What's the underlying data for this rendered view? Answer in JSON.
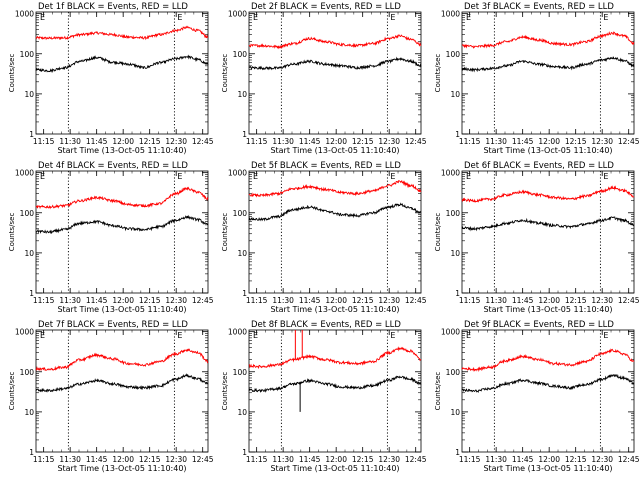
{
  "chart_data": [
    {
      "type": "line",
      "title": "Det 1f BLACK = Events, RED = LLD",
      "xlabel": "Start Time (13-Oct-05 11:10:40)",
      "ylabel": "Counts/sec",
      "flag": "E",
      "series": [
        {
          "color": "#ff0000",
          "values": [
            250,
            245,
            250,
            300,
            330,
            300,
            260,
            250,
            300,
            380,
            450,
            380,
            260
          ]
        },
        {
          "color": "#000000",
          "values": [
            40,
            38,
            45,
            65,
            80,
            62,
            55,
            45,
            60,
            75,
            85,
            72,
            55
          ]
        }
      ]
    },
    {
      "type": "line",
      "title": "Det 2f BLACK = Events, RED = LLD",
      "xlabel": "Start Time (13-Oct-05 11:10:40)",
      "ylabel": "Counts/sec",
      "flag": "E",
      "series": [
        {
          "color": "#ff0000",
          "values": [
            160,
            160,
            150,
            180,
            240,
            200,
            170,
            160,
            180,
            240,
            280,
            230,
            170
          ]
        },
        {
          "color": "#000000",
          "values": [
            45,
            44,
            44,
            55,
            65,
            55,
            50,
            45,
            50,
            65,
            75,
            65,
            50
          ]
        }
      ]
    },
    {
      "type": "line",
      "title": "Det 3f BLACK = Events, RED = LLD",
      "xlabel": "Start Time (13-Oct-05 11:10:40)",
      "ylabel": "Counts/sec",
      "flag": "E",
      "series": [
        {
          "color": "#ff0000",
          "values": [
            160,
            150,
            160,
            200,
            260,
            220,
            180,
            170,
            200,
            280,
            330,
            280,
            180
          ]
        },
        {
          "color": "#000000",
          "values": [
            42,
            40,
            43,
            50,
            65,
            55,
            48,
            45,
            55,
            70,
            80,
            68,
            50
          ]
        }
      ]
    },
    {
      "type": "line",
      "title": "Det 4f BLACK = Events, RED = LLD",
      "xlabel": "Start Time (13-Oct-05 11:10:40)",
      "ylabel": "Counts/sec",
      "flag": "E",
      "series": [
        {
          "color": "#ff0000",
          "values": [
            140,
            140,
            150,
            200,
            240,
            200,
            160,
            150,
            170,
            300,
            400,
            330,
            220
          ]
        },
        {
          "color": "#000000",
          "values": [
            35,
            33,
            38,
            55,
            60,
            48,
            40,
            38,
            45,
            65,
            78,
            68,
            50
          ]
        }
      ]
    },
    {
      "type": "line",
      "title": "Det 5f BLACK = Events, RED = LLD",
      "xlabel": "Start Time (13-Oct-05 11:10:40)",
      "ylabel": "Counts/sec",
      "flag": "E",
      "series": [
        {
          "color": "#ff0000",
          "values": [
            280,
            270,
            300,
            400,
            450,
            380,
            320,
            300,
            350,
            480,
            600,
            480,
            350
          ]
        },
        {
          "color": "#000000",
          "values": [
            70,
            68,
            80,
            120,
            140,
            110,
            90,
            85,
            100,
            140,
            160,
            130,
            100
          ]
        }
      ]
    },
    {
      "type": "line",
      "title": "Det 6f BLACK = Events, RED = LLD",
      "xlabel": "Start Time (13-Oct-05 11:10:40)",
      "ylabel": "Counts/sec",
      "flag": "E",
      "series": [
        {
          "color": "#ff0000",
          "values": [
            210,
            200,
            220,
            280,
            330,
            280,
            240,
            220,
            260,
            350,
            420,
            360,
            260
          ]
        },
        {
          "color": "#000000",
          "values": [
            42,
            40,
            45,
            55,
            65,
            55,
            48,
            45,
            52,
            65,
            75,
            65,
            50
          ]
        }
      ]
    },
    {
      "type": "line",
      "title": "Det 7f BLACK = Events, RED = LLD",
      "xlabel": "Start Time (13-Oct-05 11:10:40)",
      "ylabel": "Counts/sec",
      "flag": "E",
      "series": [
        {
          "color": "#ff0000",
          "values": [
            120,
            115,
            130,
            200,
            260,
            210,
            160,
            150,
            180,
            280,
            350,
            300,
            180
          ]
        },
        {
          "color": "#000000",
          "values": [
            35,
            34,
            38,
            50,
            60,
            50,
            42,
            40,
            45,
            65,
            80,
            68,
            50
          ]
        }
      ]
    },
    {
      "type": "line",
      "title": "Det 8f BLACK = Events, RED = LLD",
      "xlabel": "Start Time (13-Oct-05 11:10:40)",
      "ylabel": "Counts/sec",
      "flag": "E",
      "series": [
        {
          "color": "#ff0000",
          "values": [
            140,
            135,
            150,
            200,
            240,
            200,
            170,
            160,
            180,
            300,
            380,
            330,
            200
          ]
        },
        {
          "color": "#000000",
          "values": [
            35,
            34,
            38,
            50,
            60,
            50,
            42,
            40,
            45,
            62,
            75,
            65,
            50
          ]
        }
      ]
    },
    {
      "type": "line",
      "title": "Det 9f BLACK = Events, RED = LLD",
      "xlabel": "Start Time (13-Oct-05 11:10:40)",
      "ylabel": "Counts/sec",
      "flag": "E",
      "series": [
        {
          "color": "#ff0000",
          "values": [
            120,
            115,
            130,
            190,
            240,
            200,
            160,
            150,
            180,
            280,
            340,
            280,
            180
          ]
        },
        {
          "color": "#000000",
          "values": [
            35,
            33,
            38,
            50,
            62,
            52,
            44,
            40,
            48,
            65,
            82,
            70,
            52
          ]
        }
      ]
    }
  ],
  "shared": {
    "x_tick_labels": [
      "11:15",
      "11:30",
      "11:45",
      "12:00",
      "12:15",
      "12:30",
      "12:45"
    ],
    "x_ticks_hours": [
      11.25,
      11.5,
      11.75,
      12.0,
      12.25,
      12.5,
      12.75
    ],
    "x_range_hours": [
      11.1778,
      12.8
    ],
    "x_sample_hours": [
      11.18,
      11.3,
      11.45,
      11.6,
      11.75,
      11.9,
      12.05,
      12.2,
      12.35,
      12.5,
      12.6,
      12.7,
      12.8
    ],
    "y_tick_labels": [
      "1",
      "10",
      "100",
      "1000"
    ],
    "y_ticks": [
      1,
      10,
      100,
      1000
    ],
    "y_range": [
      1,
      1100
    ],
    "y_scale": "log",
    "vlines_hours": [
      11.4833,
      12.4833
    ],
    "spike_panel_index": 7,
    "spike_red_hours": [
      11.615,
      11.68
    ],
    "spike_black_hours": [
      11.66
    ]
  }
}
